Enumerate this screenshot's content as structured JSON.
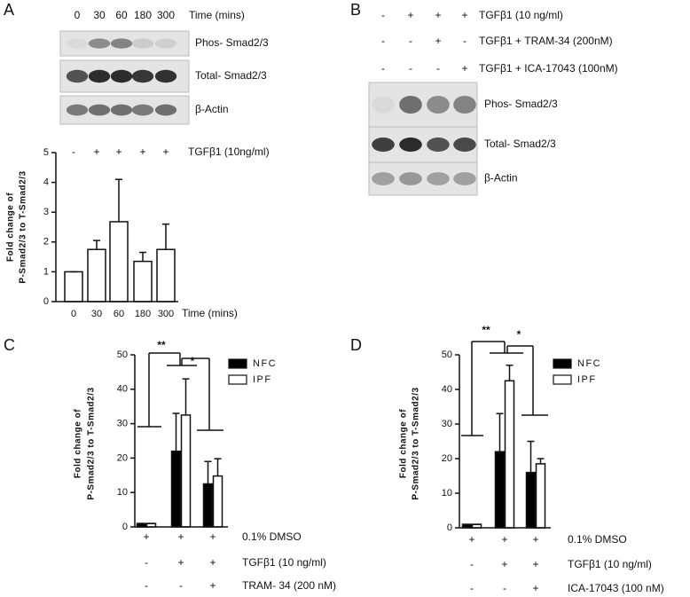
{
  "blots": [
    {
      "panel": "A",
      "lanes": [
        "0",
        "30",
        "60",
        "180",
        "300"
      ],
      "lane_title": "Time (mins)",
      "bands": [
        "Phos- Smad2/3",
        "Total- Smad2/3",
        "β-Actin"
      ]
    },
    {
      "panel": "B",
      "conditions": [
        {
          "label": "TGFβ1 (10 ng/ml)",
          "signs": [
            "-",
            "+",
            "+",
            "+"
          ]
        },
        {
          "label": "TGFβ1 + TRAM-34 (200nM)",
          "signs": [
            "-",
            "-",
            "+",
            "-"
          ]
        },
        {
          "label": "TGFβ1 + ICA-17043 (100nM)",
          "signs": [
            "-",
            "-",
            "-",
            "+"
          ]
        }
      ],
      "bands": [
        "Phos- Smad2/3",
        "Total- Smad2/3",
        "β-Actin"
      ]
    }
  ],
  "chart_data": [
    {
      "type": "bar",
      "ylabel": [
        "Fold change of",
        "P-Smad2/3 to T-Smad2/3"
      ],
      "categories": [
        "0",
        "30",
        "60",
        "180",
        "300"
      ],
      "xlabel": "Time (mins)",
      "values": [
        1.0,
        1.75,
        2.68,
        1.35,
        1.75
      ],
      "errors": [
        0,
        0.3,
        1.42,
        0.3,
        0.85
      ],
      "color": "#ffffff",
      "ylim": [
        0,
        5
      ],
      "yticks": [
        0,
        1,
        2,
        3,
        4,
        5
      ],
      "treatments": [
        {
          "label": "TGFβ1 (10ng/ml)",
          "signs": [
            "-",
            "+",
            "+",
            "+",
            "+"
          ]
        }
      ]
    },
    {
      "type": "grouped-bar",
      "panel": "C",
      "ylabel": [
        "Fold change of",
        "P-Smad2/3 to T-Smad2/3"
      ],
      "series": [
        {
          "name": "NFC",
          "color": "#000000",
          "values": [
            1,
            22,
            12.5
          ],
          "errors": [
            0,
            11,
            6.5
          ]
        },
        {
          "name": "IPF",
          "color": "#ffffff",
          "values": [
            1,
            32.5,
            14.8
          ],
          "errors": [
            0,
            10.5,
            5
          ]
        }
      ],
      "ylim": [
        0,
        50
      ],
      "yticks": [
        0,
        10,
        20,
        30,
        40,
        50
      ],
      "legend": "top-right",
      "annotations": [
        "**",
        "*"
      ],
      "treatments": [
        {
          "label": "0.1% DMSO",
          "signs": [
            "+",
            "+",
            "+"
          ]
        },
        {
          "label": "TGFβ1 (10 ng/ml)",
          "signs": [
            "-",
            "+",
            "+"
          ]
        },
        {
          "label": "TRAM- 34 (200 nM)",
          "signs": [
            "-",
            "-",
            "+"
          ]
        }
      ]
    },
    {
      "type": "grouped-bar",
      "panel": "D",
      "ylabel": [
        "Fold change of",
        "P-Smad2/3 to T-Smad2/3"
      ],
      "series": [
        {
          "name": "NFC",
          "color": "#000000",
          "values": [
            1,
            22,
            16
          ],
          "errors": [
            0,
            11,
            9
          ]
        },
        {
          "name": "IPF",
          "color": "#ffffff",
          "values": [
            1,
            42.5,
            18.5
          ],
          "errors": [
            0,
            4.5,
            1.5
          ]
        }
      ],
      "ylim": [
        0,
        50
      ],
      "yticks": [
        0,
        10,
        20,
        30,
        40,
        50
      ],
      "legend": "top-right",
      "annotations": [
        "**",
        "*"
      ],
      "treatments": [
        {
          "label": "0.1% DMSO",
          "signs": [
            "+",
            "+",
            "+"
          ]
        },
        {
          "label": "TGFβ1 (10 ng/ml)",
          "signs": [
            "-",
            "+",
            "+"
          ]
        },
        {
          "label": "ICA-17043 (100 nM)",
          "signs": [
            "-",
            "-",
            "+"
          ]
        }
      ]
    }
  ]
}
